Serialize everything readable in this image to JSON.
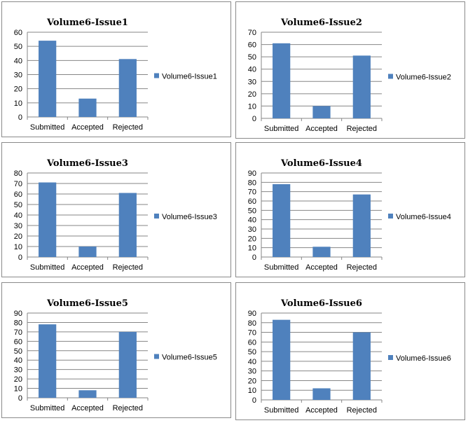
{
  "colors": {
    "bar": "#4F81BD",
    "grid": "#868686",
    "axis": "#868686",
    "border": "#8a8a8a",
    "text": "#000000"
  },
  "chart_data": [
    {
      "type": "bar",
      "title": "Volume6-Issue1",
      "categories": [
        "Submitted",
        "Accepted",
        "Rejected"
      ],
      "series": [
        {
          "name": "Volume6-Issue1",
          "values": [
            54,
            13,
            41
          ]
        }
      ],
      "ylim": [
        0,
        60
      ],
      "ystep": 10,
      "yticks": [
        "0",
        "10",
        "20",
        "30",
        "40",
        "50",
        "60"
      ],
      "grid": true,
      "legend": "right"
    },
    {
      "type": "bar",
      "title": "Volume6-Issue2",
      "categories": [
        "Submitted",
        "Accepted",
        "Rejected"
      ],
      "series": [
        {
          "name": "Volume6-Issue2",
          "values": [
            61,
            10,
            51
          ]
        }
      ],
      "ylim": [
        0,
        70
      ],
      "ystep": 10,
      "yticks": [
        "0",
        "10",
        "20",
        "30",
        "40",
        "50",
        "60",
        "70"
      ],
      "grid": true,
      "legend": "right"
    },
    {
      "type": "bar",
      "title": "Volume6-Issue3",
      "categories": [
        "Submitted",
        "Accepted",
        "Rejected"
      ],
      "series": [
        {
          "name": "Volume6-Issue3",
          "values": [
            71,
            10,
            61
          ]
        }
      ],
      "ylim": [
        0,
        80
      ],
      "ystep": 10,
      "yticks": [
        "0",
        "10",
        "20",
        "30",
        "40",
        "50",
        "60",
        "70",
        "80"
      ],
      "grid": true,
      "legend": "right"
    },
    {
      "type": "bar",
      "title": "Volume6-Issue4",
      "categories": [
        "Submitted",
        "Accepted",
        "Rejected"
      ],
      "series": [
        {
          "name": "Volume6-Issue4",
          "values": [
            78,
            11,
            67
          ]
        }
      ],
      "ylim": [
        0,
        90
      ],
      "ystep": 10,
      "yticks": [
        "0",
        "10",
        "20",
        "30",
        "40",
        "50",
        "60",
        "70",
        "80",
        "90"
      ],
      "grid": true,
      "legend": "right"
    },
    {
      "type": "bar",
      "title": "Volume6-Issue5",
      "categories": [
        "Submitted",
        "Accepted",
        "Rejected"
      ],
      "series": [
        {
          "name": "Volume6-Issue5",
          "values": [
            78,
            8,
            70
          ]
        }
      ],
      "ylim": [
        0,
        90
      ],
      "ystep": 10,
      "yticks": [
        "0",
        "10",
        "20",
        "30",
        "40",
        "50",
        "60",
        "70",
        "80",
        "90"
      ],
      "grid": true,
      "legend": "right"
    },
    {
      "type": "bar",
      "title": "Volume6-Issue6",
      "categories": [
        "Submitted",
        "Accepted",
        "Rejected"
      ],
      "series": [
        {
          "name": "Volume6-Issue6",
          "values": [
            83,
            12,
            70
          ]
        }
      ],
      "ylim": [
        0,
        90
      ],
      "ystep": 10,
      "yticks": [
        "0",
        "10",
        "20",
        "30",
        "40",
        "50",
        "60",
        "70",
        "80",
        "90"
      ],
      "grid": true,
      "legend": "right"
    }
  ]
}
